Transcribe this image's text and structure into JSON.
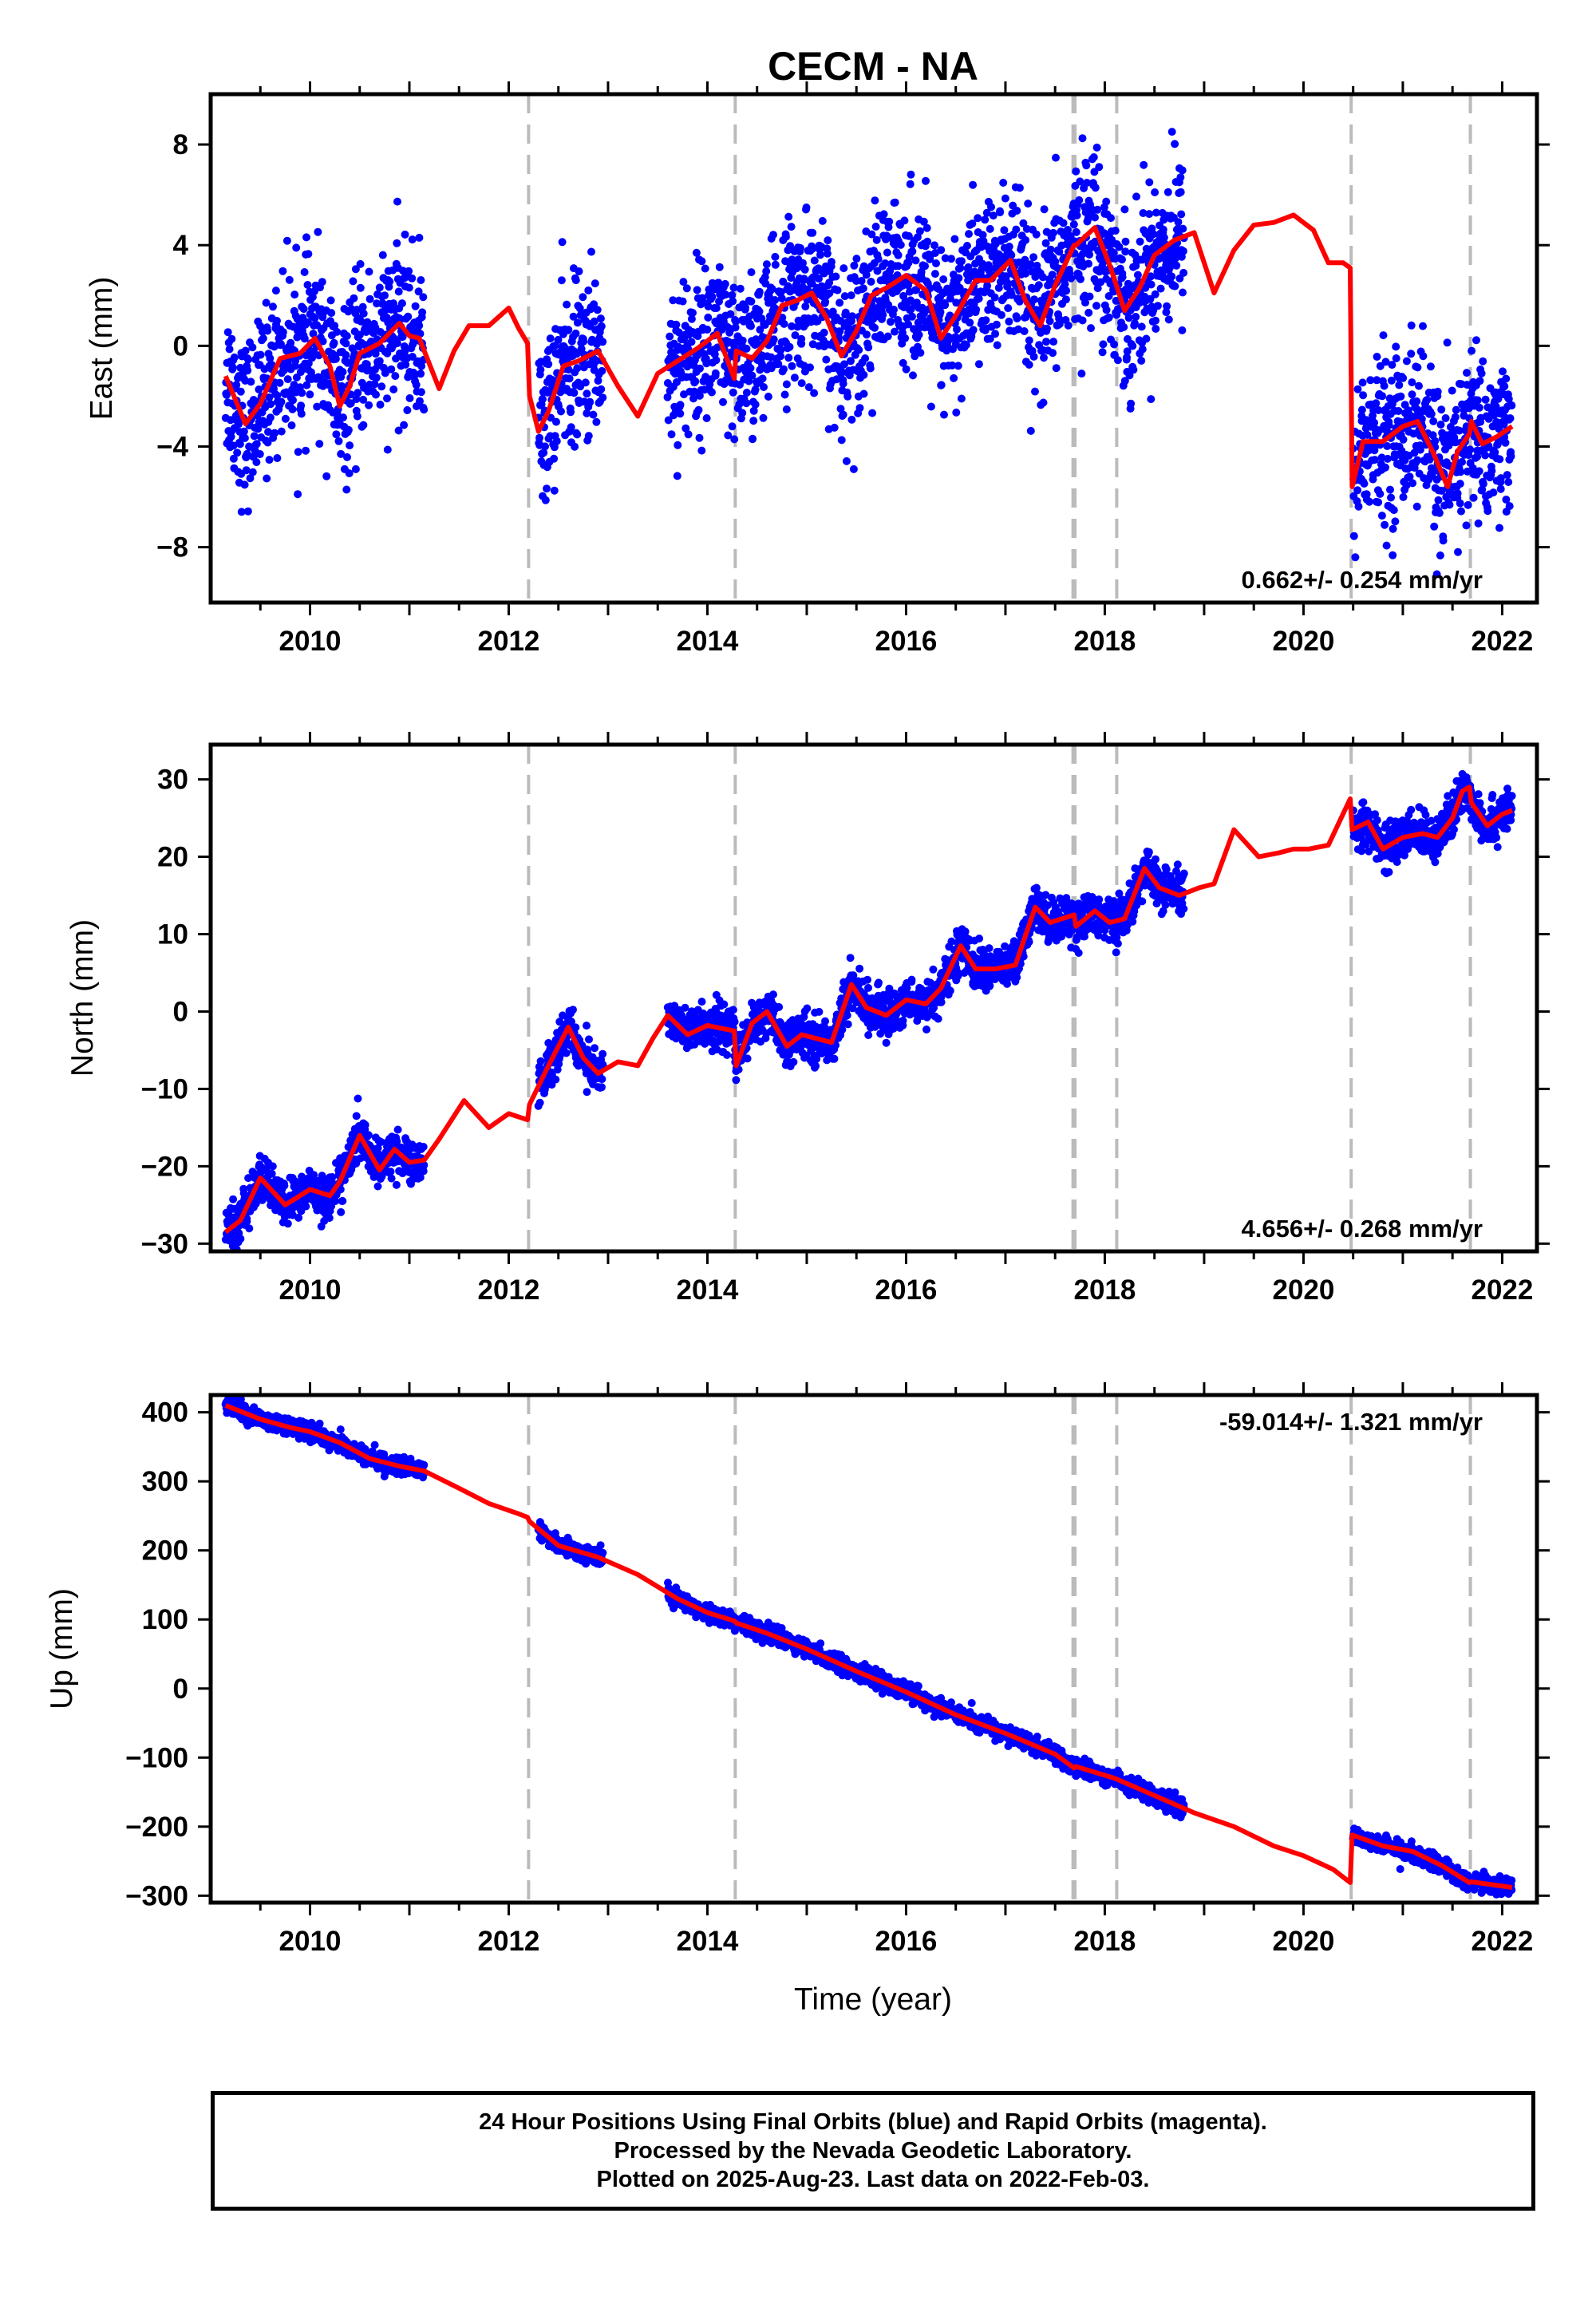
{
  "title": "CECM - NA",
  "x_axis_label": "Time (year)",
  "x_ticks": [
    "2010",
    "2012",
    "2014",
    "2016",
    "2018",
    "2020",
    "2022"
  ],
  "x_tick_values": [
    2010,
    2012,
    2014,
    2016,
    2018,
    2020,
    2022
  ],
  "colors": {
    "data": "#0000ff",
    "model": "#ff0000",
    "event_line": "#bbbbbb",
    "frame": "#000000"
  },
  "footer": {
    "line1": "24 Hour Positions Using Final Orbits (blue) and Rapid Orbits (magenta).",
    "line2": "Processed by the Nevada Geodetic Laboratory.",
    "line3": "Plotted on 2025-Aug-23. Last data on 2022-Feb-03."
  },
  "chart_data": [
    {
      "type": "scatter",
      "panel": "east",
      "ylabel": "East (mm)",
      "xlabel": "",
      "xlim": [
        2009.0,
        2022.35
      ],
      "ylim": [
        -10.2,
        10.0
      ],
      "y_ticks": [
        8,
        4,
        0,
        -4,
        -8
      ],
      "y_tick_labels": [
        "8",
        "4",
        "0",
        "−4",
        "−8"
      ],
      "rate_label": "0.662+/- 0.254 mm/yr",
      "rate_position": "bottom-right",
      "event_lines": [
        2012.2,
        2014.28,
        2017.68,
        2017.7,
        2018.12,
        2020.48,
        2021.68
      ],
      "data_segments": [
        [
          2009.15,
          2011.15
        ],
        [
          2012.3,
          2012.95
        ],
        [
          2013.6,
          2018.8
        ],
        [
          2020.5,
          2022.1
        ]
      ],
      "series": [
        {
          "name": "model",
          "x": [
            2009.15,
            2009.35,
            2009.5,
            2009.7,
            2009.9,
            2010.05,
            2010.2,
            2010.3,
            2010.4,
            2010.5,
            2010.7,
            2010.9,
            2011.0,
            2011.1,
            2011.3,
            2011.45,
            2011.6,
            2011.8,
            2012.0,
            2012.1,
            2012.19,
            2012.21,
            2012.3,
            2012.4,
            2012.55,
            2012.7,
            2012.9,
            2013.1,
            2013.3,
            2013.5,
            2013.7,
            2013.9,
            2014.1,
            2014.27,
            2014.29,
            2014.45,
            2014.6,
            2014.75,
            2014.9,
            2015.05,
            2015.2,
            2015.35,
            2015.5,
            2015.65,
            2015.8,
            2016.0,
            2016.2,
            2016.35,
            2016.5,
            2016.7,
            2016.85,
            2017.05,
            2017.2,
            2017.35,
            2017.5,
            2017.69,
            2017.71,
            2017.9,
            2018.05,
            2018.2,
            2018.35,
            2018.5,
            2018.7,
            2018.9,
            2019.1,
            2019.3,
            2019.5,
            2019.7,
            2019.9,
            2020.1,
            2020.25,
            2020.4,
            2020.47,
            2020.49,
            2020.6,
            2020.8,
            2021.0,
            2021.15,
            2021.3,
            2021.45,
            2021.55,
            2021.67,
            2021.69,
            2021.8,
            2021.95,
            2022.1
          ],
          "y": [
            -1.2,
            -3.1,
            -2.3,
            -0.5,
            -0.3,
            0.3,
            -0.8,
            -2.4,
            -1.6,
            -0.3,
            0.1,
            0.9,
            0.4,
            0.3,
            -1.7,
            -0.2,
            0.8,
            0.8,
            1.5,
            0.7,
            0.1,
            -2.0,
            -3.4,
            -2.6,
            -0.8,
            -0.6,
            -0.2,
            -1.6,
            -2.8,
            -1.1,
            -0.6,
            -0.1,
            0.5,
            -1.3,
            -0.2,
            -0.5,
            0.2,
            1.6,
            1.8,
            2.1,
            1.1,
            -0.4,
            0.6,
            2.0,
            2.3,
            2.8,
            2.2,
            0.3,
            1.2,
            2.6,
            2.6,
            3.4,
            1.8,
            0.8,
            2.4,
            4.0,
            4.0,
            4.7,
            3.2,
            1.4,
            2.3,
            3.6,
            4.2,
            4.5,
            2.1,
            3.8,
            4.8,
            4.9,
            5.2,
            4.6,
            3.3,
            3.3,
            3.1,
            -5.6,
            -3.8,
            -3.8,
            -3.2,
            -3.0,
            -4.2,
            -5.6,
            -4.2,
            -3.5,
            -3.0,
            -3.9,
            -3.6,
            -3.2
          ]
        }
      ]
    },
    {
      "type": "scatter",
      "panel": "north",
      "ylabel": "North (mm)",
      "xlabel": "",
      "xlim": [
        2009.0,
        2022.35
      ],
      "ylim": [
        -31.0,
        34.5
      ],
      "y_ticks": [
        30,
        20,
        10,
        0,
        -10,
        -20,
        -30
      ],
      "y_tick_labels": [
        "30",
        "20",
        "10",
        "0",
        "−10",
        "−20",
        "−30"
      ],
      "rate_label": "4.656+/- 0.268 mm/yr",
      "rate_position": "bottom-right",
      "event_lines": [
        2012.2,
        2014.28,
        2017.68,
        2017.7,
        2018.12,
        2020.48,
        2021.68
      ],
      "data_segments": [
        [
          2009.15,
          2011.15
        ],
        [
          2012.3,
          2012.95
        ],
        [
          2013.6,
          2018.8
        ],
        [
          2020.5,
          2022.1
        ]
      ],
      "series": [
        {
          "name": "model",
          "x": [
            2009.15,
            2009.3,
            2009.5,
            2009.75,
            2010.0,
            2010.2,
            2010.3,
            2010.5,
            2010.7,
            2010.85,
            2011.0,
            2011.15,
            2011.3,
            2011.55,
            2011.8,
            2012.0,
            2012.19,
            2012.21,
            2012.4,
            2012.6,
            2012.75,
            2012.9,
            2013.1,
            2013.3,
            2013.45,
            2013.6,
            2013.8,
            2014.0,
            2014.15,
            2014.27,
            2014.29,
            2014.45,
            2014.6,
            2014.8,
            2014.95,
            2015.1,
            2015.25,
            2015.45,
            2015.6,
            2015.8,
            2016.0,
            2016.2,
            2016.35,
            2016.55,
            2016.7,
            2016.9,
            2017.1,
            2017.3,
            2017.45,
            2017.69,
            2017.71,
            2017.9,
            2018.05,
            2018.2,
            2018.4,
            2018.55,
            2018.75,
            2018.95,
            2019.1,
            2019.3,
            2019.55,
            2019.75,
            2019.9,
            2020.05,
            2020.25,
            2020.47,
            2020.49,
            2020.65,
            2020.8,
            2021.0,
            2021.2,
            2021.35,
            2021.5,
            2021.6,
            2021.67,
            2021.69,
            2021.85,
            2022.0,
            2022.1
          ],
          "y": [
            -28.5,
            -27.0,
            -21.5,
            -25.0,
            -23.0,
            -23.8,
            -22.0,
            -16.0,
            -20.5,
            -17.8,
            -19.5,
            -19.2,
            -16.5,
            -11.5,
            -15.0,
            -13.2,
            -14.0,
            -12.0,
            -7.0,
            -2.0,
            -6.0,
            -8.0,
            -6.5,
            -7.0,
            -3.5,
            -0.5,
            -3.0,
            -1.8,
            -2.2,
            -2.5,
            -7.0,
            -1.5,
            0.0,
            -4.5,
            -3.0,
            -3.5,
            -4.0,
            3.5,
            0.5,
            -0.5,
            1.5,
            1.0,
            3.0,
            8.5,
            5.5,
            5.5,
            6.0,
            13.5,
            11.5,
            12.5,
            11.0,
            13.0,
            11.5,
            12.0,
            18.5,
            16.0,
            15.0,
            16.0,
            16.5,
            23.5,
            20.0,
            20.5,
            21.0,
            21.0,
            21.5,
            27.5,
            23.5,
            24.5,
            21.0,
            22.5,
            23.0,
            22.5,
            25.0,
            28.5,
            29.0,
            27.0,
            24.0,
            25.5,
            26.0
          ]
        }
      ]
    },
    {
      "type": "scatter",
      "panel": "up",
      "ylabel": "Up (mm)",
      "xlabel": "Time (year)",
      "xlim": [
        2009.0,
        2022.35
      ],
      "ylim": [
        -310,
        425
      ],
      "y_ticks": [
        400,
        300,
        200,
        100,
        0,
        -100,
        -200,
        -300
      ],
      "y_tick_labels": [
        "400",
        "300",
        "200",
        "100",
        "0",
        "−100",
        "−200",
        "−300"
      ],
      "rate_label": "-59.014+/- 1.321 mm/yr",
      "rate_position": "top-right",
      "event_lines": [
        2012.2,
        2014.28,
        2017.68,
        2017.7,
        2018.12,
        2020.48,
        2021.68
      ],
      "data_segments": [
        [
          2009.15,
          2011.15
        ],
        [
          2012.3,
          2012.95
        ],
        [
          2013.6,
          2018.8
        ],
        [
          2020.5,
          2022.1
        ]
      ],
      "series": [
        {
          "name": "model",
          "x": [
            2009.15,
            2009.5,
            2009.8,
            2010.0,
            2010.3,
            2010.6,
            2010.9,
            2011.15,
            2011.5,
            2011.8,
            2012.1,
            2012.19,
            2012.21,
            2012.5,
            2012.9,
            2013.3,
            2013.7,
            2014.0,
            2014.27,
            2014.29,
            2014.6,
            2015.0,
            2015.5,
            2016.0,
            2016.5,
            2017.0,
            2017.5,
            2017.69,
            2017.71,
            2018.1,
            2018.5,
            2018.9,
            2019.3,
            2019.7,
            2020.0,
            2020.3,
            2020.47,
            2020.49,
            2020.8,
            2021.1,
            2021.4,
            2021.67,
            2021.69,
            2022.1
          ],
          "y": [
            410,
            390,
            378,
            372,
            356,
            333,
            322,
            315,
            290,
            268,
            253,
            248,
            242,
            207,
            190,
            165,
            130,
            110,
            98,
            95,
            80,
            57,
            25,
            -5,
            -38,
            -65,
            -95,
            -115,
            -113,
            -130,
            -155,
            -180,
            -200,
            -228,
            -242,
            -262,
            -281,
            -212,
            -228,
            -236,
            -257,
            -281,
            -280,
            -288
          ]
        }
      ]
    }
  ]
}
